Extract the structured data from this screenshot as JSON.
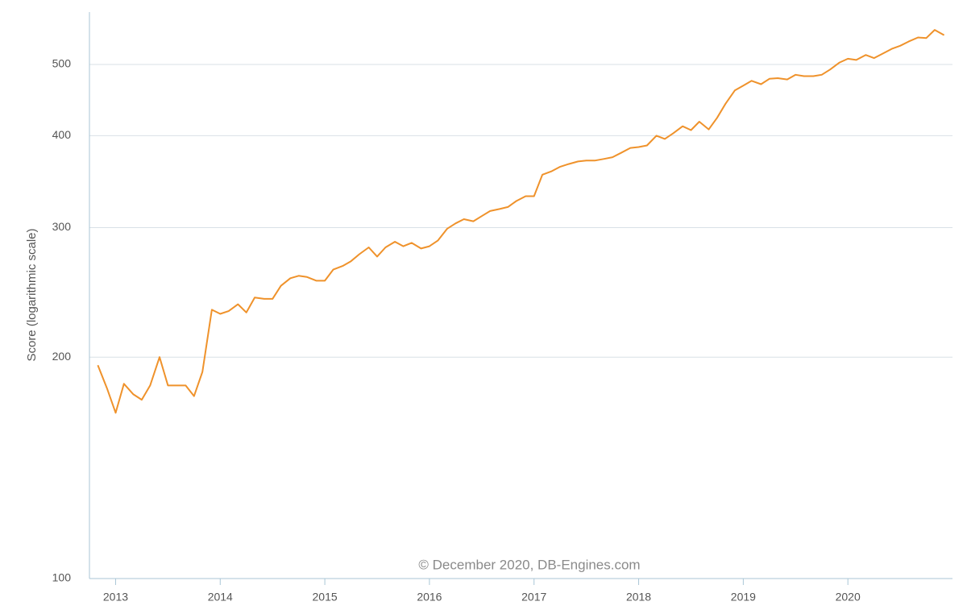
{
  "chart_data": {
    "type": "line",
    "y_label": "Score (logarithmic scale)",
    "annotation": "© December 2020, DB-Engines.com",
    "log_y": true,
    "grid": true,
    "xlim": [
      2012.75,
      2021.0
    ],
    "xticks": [
      2013,
      2014,
      2015,
      2016,
      2017,
      2018,
      2019,
      2020
    ],
    "ylim": [
      100,
      589
    ],
    "yticks": [
      100,
      200,
      300,
      400,
      500
    ],
    "x": [
      2012.83,
      2012.92,
      2013.0,
      2013.08,
      2013.17,
      2013.25,
      2013.33,
      2013.42,
      2013.5,
      2013.58,
      2013.67,
      2013.75,
      2013.83,
      2013.92,
      2014.0,
      2014.08,
      2014.17,
      2014.25,
      2014.33,
      2014.42,
      2014.5,
      2014.58,
      2014.67,
      2014.75,
      2014.83,
      2014.92,
      2015.0,
      2015.08,
      2015.17,
      2015.25,
      2015.33,
      2015.42,
      2015.5,
      2015.58,
      2015.67,
      2015.75,
      2015.83,
      2015.92,
      2016.0,
      2016.08,
      2016.17,
      2016.25,
      2016.33,
      2016.42,
      2016.5,
      2016.58,
      2016.67,
      2016.75,
      2016.83,
      2016.92,
      2017.0,
      2017.08,
      2017.17,
      2017.25,
      2017.33,
      2017.42,
      2017.5,
      2017.58,
      2017.67,
      2017.75,
      2017.83,
      2017.92,
      2018.0,
      2018.08,
      2018.17,
      2018.25,
      2018.33,
      2018.42,
      2018.5,
      2018.58,
      2018.67,
      2018.75,
      2018.83,
      2018.92,
      2019.0,
      2019.08,
      2019.17,
      2019.25,
      2019.33,
      2019.42,
      2019.5,
      2019.58,
      2019.67,
      2019.75,
      2019.83,
      2019.92,
      2020.0,
      2020.08,
      2020.17,
      2020.25,
      2020.33,
      2020.42,
      2020.5,
      2020.58,
      2020.67,
      2020.75,
      2020.83,
      2020.92
    ],
    "series": [
      {
        "color": "#ef922b",
        "values": [
          195,
          181,
          168,
          184,
          178,
          175,
          183,
          200,
          183,
          183,
          183,
          177,
          191,
          232,
          229,
          231,
          236,
          230,
          241,
          240,
          240,
          250,
          256,
          258,
          257,
          254,
          254,
          263,
          266,
          270,
          276,
          282,
          274,
          282,
          287,
          283,
          286,
          281,
          283,
          288,
          299,
          304,
          308,
          306,
          311,
          316,
          318,
          320,
          326,
          331,
          331,
          354,
          358,
          363,
          366,
          369,
          370,
          370,
          372,
          374,
          379,
          385,
          386,
          388,
          400,
          396,
          403,
          412,
          407,
          418,
          408,
          423,
          442,
          461,
          468,
          475,
          470,
          478,
          479,
          477,
          484,
          482,
          482,
          484,
          492,
          503,
          509,
          507,
          515,
          510,
          517,
          525,
          530,
          537,
          544,
          543,
          557,
          548
        ]
      }
    ]
  }
}
